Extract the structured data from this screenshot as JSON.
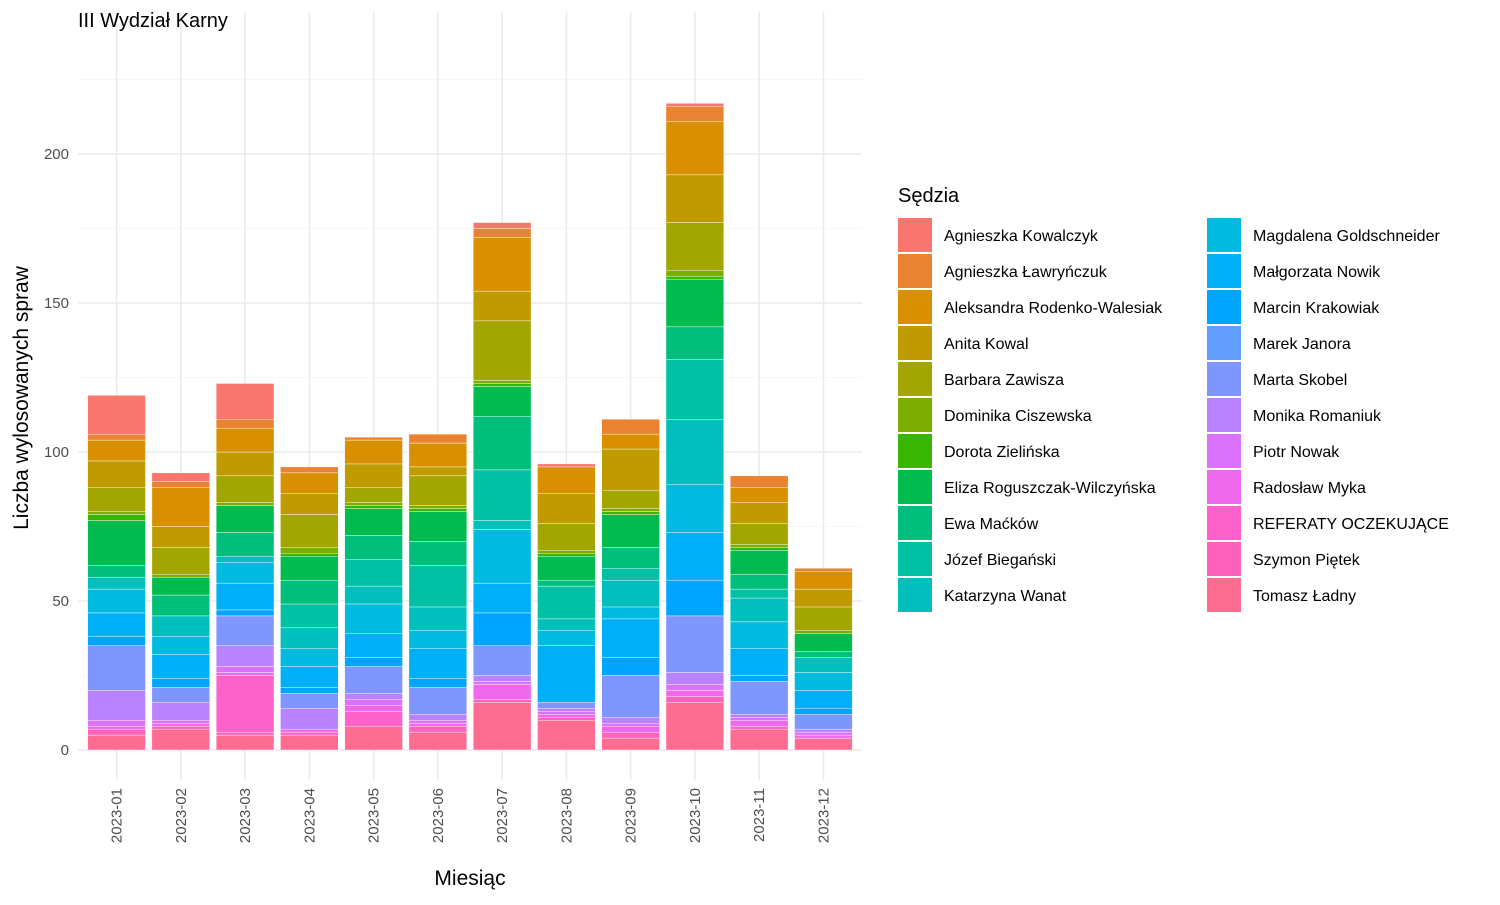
{
  "chart_data": {
    "type": "bar",
    "stacked": true,
    "title": "III Wydział Karny",
    "xlabel": "Miesiąc",
    "ylabel": "Liczba wylosowanych spraw",
    "legend_title": "Sędzia",
    "legend_position": "right",
    "grid": true,
    "ylim": [
      0,
      236
    ],
    "yticks": [
      0,
      50,
      100,
      150,
      200
    ],
    "categories": [
      "2023-01",
      "2023-02",
      "2023-03",
      "2023-04",
      "2023-05",
      "2023-06",
      "2023-07",
      "2023-08",
      "2023-09",
      "2023-10",
      "2023-11",
      "2023-12"
    ],
    "series": [
      {
        "name": "Agnieszka Kowalczyk",
        "color": "#F8766D",
        "values": [
          13,
          3,
          12,
          0,
          0,
          0,
          2,
          1,
          0,
          1,
          0,
          0
        ]
      },
      {
        "name": "Agnieszka Ławryńczuk",
        "color": "#EA8331",
        "values": [
          2,
          2,
          3,
          2,
          1,
          3,
          3,
          0,
          5,
          5,
          4,
          1
        ]
      },
      {
        "name": "Aleksandra Rodenko-Walesiak",
        "color": "#D89000",
        "values": [
          7,
          13,
          8,
          7,
          8,
          8,
          18,
          9,
          5,
          18,
          5,
          6
        ]
      },
      {
        "name": "Anita Kowal",
        "color": "#C09B00",
        "values": [
          9,
          7,
          8,
          7,
          8,
          3,
          10,
          10,
          14,
          16,
          7,
          6
        ]
      },
      {
        "name": "Barbara Zawisza",
        "color": "#A3A500",
        "values": [
          8,
          9,
          9,
          11,
          5,
          10,
          20,
          9,
          6,
          16,
          7,
          8
        ]
      },
      {
        "name": "Dominika Ciszewska",
        "color": "#7CAE00",
        "values": [
          1,
          1,
          1,
          2,
          1,
          1,
          1,
          1,
          1,
          2,
          1,
          1
        ]
      },
      {
        "name": "Dorota Zielińska",
        "color": "#39B600",
        "values": [
          2,
          0,
          0,
          1,
          1,
          1,
          1,
          1,
          1,
          1,
          1,
          0
        ]
      },
      {
        "name": "Eliza Roguszczak-Wilczyńska",
        "color": "#00BB4E",
        "values": [
          15,
          6,
          9,
          8,
          9,
          10,
          10,
          8,
          11,
          16,
          8,
          6
        ]
      },
      {
        "name": "Ewa Maćków",
        "color": "#00BF7D",
        "values": [
          4,
          7,
          8,
          8,
          8,
          8,
          18,
          2,
          7,
          11,
          5,
          2
        ]
      },
      {
        "name": "Józef Biegański",
        "color": "#00C1A3",
        "values": [
          0,
          0,
          0,
          8,
          9,
          14,
          17,
          11,
          4,
          20,
          3,
          0
        ]
      },
      {
        "name": "Katarzyna Wanat",
        "color": "#00BFBC",
        "values": [
          4,
          7,
          2,
          7,
          6,
          8,
          3,
          4,
          9,
          22,
          8,
          5
        ]
      },
      {
        "name": "Magdalena Goldschneider",
        "color": "#00BAE0",
        "values": [
          8,
          6,
          7,
          6,
          10,
          6,
          18,
          5,
          4,
          16,
          9,
          6
        ]
      },
      {
        "name": "Małgorzata Nowik",
        "color": "#00B0F6",
        "values": [
          8,
          8,
          9,
          7,
          8,
          10,
          10,
          19,
          13,
          16,
          9,
          6
        ]
      },
      {
        "name": "Marcin Krakowiak",
        "color": "#00A5FF",
        "values": [
          3,
          3,
          2,
          2,
          3,
          3,
          11,
          0,
          6,
          12,
          2,
          2
        ]
      },
      {
        "name": "Marek Janora",
        "color": "#619CFF",
        "values": [
          0,
          0,
          0,
          0,
          0,
          0,
          0,
          0,
          0,
          0,
          0,
          0
        ]
      },
      {
        "name": "Marta Skobel",
        "color": "#7F96FF",
        "values": [
          15,
          5,
          10,
          5,
          9,
          9,
          10,
          2,
          14,
          19,
          11,
          5
        ]
      },
      {
        "name": "Monika Romaniuk",
        "color": "#B983FF",
        "values": [
          10,
          6,
          7,
          7,
          2,
          2,
          2,
          1,
          2,
          4,
          1,
          1
        ]
      },
      {
        "name": "Piotr Nowak",
        "color": "#DB72FB",
        "values": [
          2,
          1,
          2,
          0,
          2,
          1,
          1,
          1,
          1,
          2,
          1,
          1
        ]
      },
      {
        "name": "Radosław Myka",
        "color": "#ED68ED",
        "values": [
          1,
          1,
          1,
          1,
          2,
          1,
          5,
          1,
          2,
          2,
          2,
          1
        ]
      },
      {
        "name": "REFERATY OCZEKUJĄCE",
        "color": "#FF61CC",
        "values": [
          0,
          0,
          19,
          0,
          5,
          0,
          0,
          0,
          0,
          0,
          0,
          0
        ]
      },
      {
        "name": "Szymon Piętek",
        "color": "#FF62BC",
        "values": [
          2,
          1,
          1,
          1,
          0,
          2,
          1,
          1,
          2,
          2,
          1,
          0
        ]
      },
      {
        "name": "Tomasz Ładny",
        "color": "#FF6C91",
        "values": [
          5,
          7,
          5,
          5,
          8,
          6,
          16,
          10,
          4,
          16,
          7,
          4
        ]
      }
    ]
  }
}
